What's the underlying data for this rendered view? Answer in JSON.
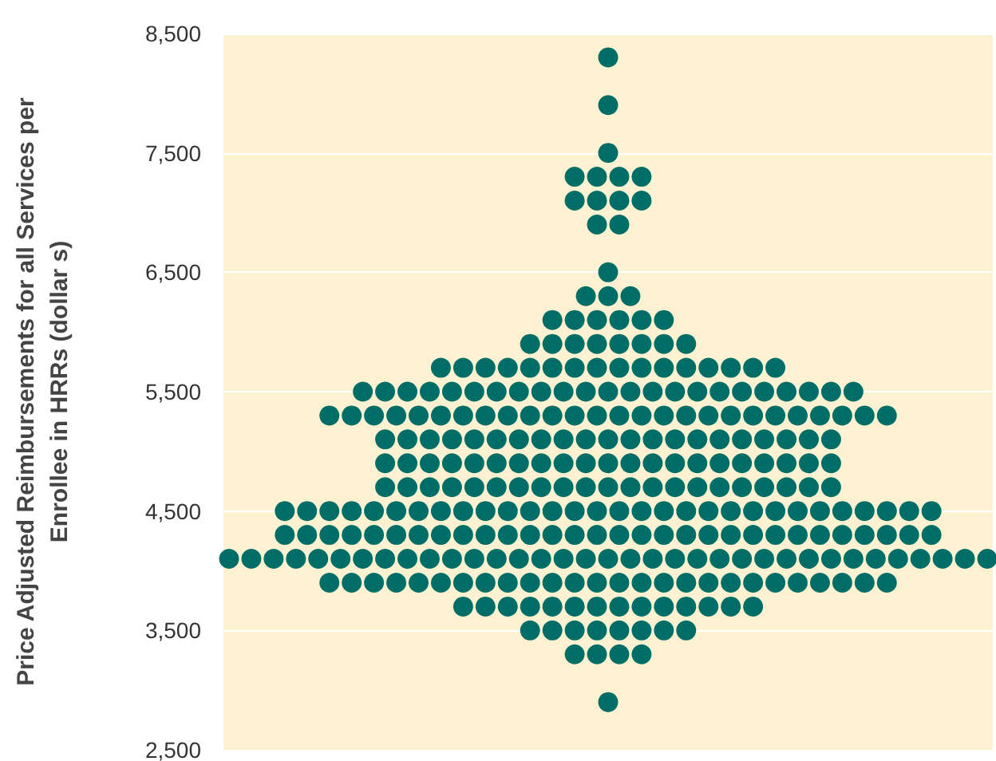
{
  "chart_data": {
    "type": "scatter",
    "ylabel": "Price Adjusted Reimbursements for all Services per Enrollee in HRRs (dollar s)",
    "categories": [
      null,
      null,
      null,
      null,
      null,
      null,
      null,
      null,
      null,
      null,
      null,
      null,
      null,
      null,
      null,
      null,
      null,
      null,
      null,
      null,
      null,
      null,
      null,
      null,
      null,
      null,
      null,
      null,
      null,
      null,
      null,
      null,
      null,
      null,
      null,
      null,
      null,
      null,
      null,
      null,
      null,
      null,
      null,
      null,
      null,
      null,
      null,
      null,
      null,
      null,
      null,
      null,
      null,
      null,
      null,
      null,
      null,
      null,
      null,
      null,
      null,
      null,
      null,
      null,
      null,
      null,
      null,
      null,
      null
    ],
    "ylim": [
      2500,
      8500
    ],
    "yticks": [
      {
        "value": 2500,
        "label": "2,500"
      },
      {
        "value": 3500,
        "label": "3,500"
      },
      {
        "value": 4500,
        "label": "4,500"
      },
      {
        "value": 5500,
        "label": "5,500"
      },
      {
        "value": 6500,
        "label": "6,500"
      },
      {
        "value": 7500,
        "label": "7,500"
      },
      {
        "value": 8500,
        "label": "8,500"
      }
    ],
    "tick_labels": "y",
    "grid": "y",
    "marker": "circle",
    "series": [
      {
        "color": "#006d66",
        "values": [
          null,
          null,
          null,
          null,
          null,
          null,
          null,
          null,
          null,
          null,
          null,
          null,
          null,
          null,
          null,
          null,
          null,
          null,
          null,
          null,
          null,
          null,
          null,
          null,
          null,
          null,
          null,
          null,
          null,
          null,
          null,
          null,
          null,
          null,
          8300,
          null,
          null,
          null,
          null,
          null,
          null,
          null,
          null,
          null,
          null,
          null,
          null,
          null,
          null,
          null,
          null,
          null,
          null,
          null,
          null,
          null,
          null,
          null,
          null,
          null,
          null,
          null,
          null,
          null,
          null,
          null,
          null,
          null,
          null
        ]
      },
      {
        "color": "#006d66",
        "values": [
          null,
          null,
          null,
          null,
          null,
          null,
          null,
          null,
          null,
          null,
          null,
          null,
          null,
          null,
          null,
          null,
          null,
          null,
          null,
          null,
          null,
          null,
          null,
          null,
          null,
          null,
          null,
          null,
          null,
          null,
          null,
          null,
          null,
          null,
          7900,
          null,
          null,
          null,
          null,
          null,
          null,
          null,
          null,
          null,
          null,
          null,
          null,
          null,
          null,
          null,
          null,
          null,
          null,
          null,
          null,
          null,
          null,
          null,
          null,
          null,
          null,
          null,
          null,
          null,
          null,
          null,
          null,
          null,
          null
        ]
      },
      {
        "color": "#006d66",
        "values": [
          null,
          null,
          null,
          null,
          null,
          null,
          null,
          null,
          null,
          null,
          null,
          null,
          null,
          null,
          null,
          null,
          null,
          null,
          null,
          null,
          null,
          null,
          null,
          null,
          null,
          null,
          null,
          null,
          null,
          null,
          null,
          null,
          null,
          null,
          7500,
          null,
          null,
          null,
          null,
          null,
          null,
          null,
          null,
          null,
          null,
          null,
          null,
          null,
          null,
          null,
          null,
          null,
          null,
          null,
          null,
          null,
          null,
          null,
          null,
          null,
          null,
          null,
          null,
          null,
          null,
          null,
          null,
          null,
          null
        ]
      },
      {
        "color": "#006d66",
        "values": [
          null,
          null,
          null,
          null,
          null,
          null,
          null,
          null,
          null,
          null,
          null,
          null,
          null,
          null,
          null,
          null,
          null,
          null,
          null,
          null,
          null,
          null,
          null,
          null,
          null,
          null,
          null,
          null,
          null,
          null,
          null,
          7300,
          null,
          7300,
          null,
          7300,
          null,
          7300,
          null,
          null,
          null,
          null,
          null,
          null,
          null,
          null,
          null,
          null,
          null,
          null,
          null,
          null,
          null,
          null,
          null,
          null,
          null,
          null,
          null,
          null,
          null,
          null,
          null,
          null,
          null,
          null,
          null,
          null,
          null
        ]
      },
      {
        "color": "#006d66",
        "values": [
          null,
          null,
          null,
          null,
          null,
          null,
          null,
          null,
          null,
          null,
          null,
          null,
          null,
          null,
          null,
          null,
          null,
          null,
          null,
          null,
          null,
          null,
          null,
          null,
          null,
          null,
          null,
          null,
          null,
          null,
          null,
          7100,
          null,
          7100,
          null,
          7100,
          null,
          7100,
          null,
          null,
          null,
          null,
          null,
          null,
          null,
          null,
          null,
          null,
          null,
          null,
          null,
          null,
          null,
          null,
          null,
          null,
          null,
          null,
          null,
          null,
          null,
          null,
          null,
          null,
          null,
          null,
          null,
          null,
          null
        ]
      },
      {
        "color": "#006d66",
        "values": [
          null,
          null,
          null,
          null,
          null,
          null,
          null,
          null,
          null,
          null,
          null,
          null,
          null,
          null,
          null,
          null,
          null,
          null,
          null,
          null,
          null,
          null,
          null,
          null,
          null,
          null,
          null,
          null,
          null,
          null,
          null,
          null,
          null,
          6900,
          null,
          6900,
          null,
          null,
          null,
          null,
          null,
          null,
          null,
          null,
          null,
          null,
          null,
          null,
          null,
          null,
          null,
          null,
          null,
          null,
          null,
          null,
          null,
          null,
          null,
          null,
          null,
          null,
          null,
          null,
          null,
          null,
          null,
          null,
          null
        ]
      },
      {
        "color": "#006d66",
        "values": [
          null,
          null,
          null,
          null,
          null,
          null,
          null,
          null,
          null,
          null,
          null,
          null,
          null,
          null,
          null,
          null,
          null,
          null,
          null,
          null,
          null,
          null,
          null,
          null,
          null,
          null,
          null,
          null,
          null,
          null,
          null,
          null,
          null,
          null,
          6500,
          null,
          null,
          null,
          null,
          null,
          null,
          null,
          null,
          null,
          null,
          null,
          null,
          null,
          null,
          null,
          null,
          null,
          null,
          null,
          null,
          null,
          null,
          null,
          null,
          null,
          null,
          null,
          null,
          null,
          null,
          null,
          null,
          null,
          null
        ]
      },
      {
        "color": "#006d66",
        "values": [
          null,
          null,
          null,
          null,
          null,
          null,
          null,
          null,
          null,
          null,
          null,
          null,
          null,
          null,
          null,
          null,
          null,
          null,
          null,
          null,
          null,
          null,
          null,
          null,
          null,
          null,
          null,
          null,
          null,
          null,
          null,
          null,
          6300,
          null,
          6300,
          null,
          6300,
          null,
          null,
          null,
          null,
          null,
          null,
          null,
          null,
          null,
          null,
          null,
          null,
          null,
          null,
          null,
          null,
          null,
          null,
          null,
          null,
          null,
          null,
          null,
          null,
          null,
          null,
          null,
          null,
          null,
          null,
          null,
          null
        ]
      },
      {
        "color": "#006d66",
        "values": [
          null,
          null,
          null,
          null,
          null,
          null,
          null,
          null,
          null,
          null,
          null,
          null,
          null,
          null,
          null,
          null,
          null,
          null,
          null,
          null,
          null,
          null,
          null,
          null,
          null,
          null,
          null,
          null,
          null,
          6100,
          null,
          6100,
          null,
          6100,
          null,
          6100,
          null,
          6100,
          null,
          6100,
          null,
          null,
          null,
          null,
          null,
          null,
          null,
          null,
          null,
          null,
          null,
          null,
          null,
          null,
          null,
          null,
          null,
          null,
          null,
          null,
          null,
          null,
          null,
          null,
          null,
          null,
          null,
          null,
          null
        ]
      },
      {
        "color": "#006d66",
        "values": [
          null,
          null,
          null,
          null,
          null,
          null,
          null,
          null,
          null,
          null,
          null,
          null,
          null,
          null,
          null,
          null,
          null,
          null,
          null,
          null,
          null,
          null,
          null,
          null,
          null,
          null,
          null,
          5900,
          null,
          5900,
          null,
          5900,
          null,
          5900,
          null,
          5900,
          null,
          5900,
          null,
          5900,
          null,
          5900,
          null,
          null,
          null,
          null,
          null,
          null,
          null,
          null,
          null,
          null,
          null,
          null,
          null,
          null,
          null,
          null,
          null,
          null,
          null,
          null,
          null,
          null,
          null,
          null,
          null,
          null,
          null
        ]
      },
      {
        "color": "#006d66",
        "values": [
          null,
          null,
          null,
          null,
          null,
          null,
          null,
          null,
          null,
          null,
          null,
          null,
          null,
          null,
          null,
          null,
          null,
          null,
          null,
          5700,
          null,
          5700,
          null,
          5700,
          null,
          5700,
          null,
          5700,
          null,
          5700,
          null,
          5700,
          null,
          5700,
          null,
          5700,
          null,
          5700,
          null,
          5700,
          null,
          5700,
          null,
          5700,
          null,
          5700,
          null,
          5700,
          null,
          5700,
          null,
          null,
          null,
          null,
          null,
          null,
          null,
          null,
          null,
          null,
          null,
          null,
          null,
          null,
          null,
          null,
          null,
          null,
          null
        ]
      },
      {
        "color": "#006d66",
        "values": [
          null,
          null,
          null,
          null,
          null,
          null,
          null,
          null,
          null,
          null,
          null,
          null,
          5500,
          null,
          5500,
          null,
          5500,
          null,
          5500,
          null,
          5500,
          null,
          5500,
          null,
          5500,
          null,
          5500,
          null,
          5500,
          null,
          5500,
          null,
          5500,
          null,
          5500,
          null,
          5500,
          null,
          5500,
          null,
          5500,
          null,
          5500,
          null,
          5500,
          null,
          5500,
          null,
          5500,
          null,
          5500,
          null,
          5500,
          null,
          5500,
          null,
          5500,
          null,
          null,
          null,
          null,
          null,
          null,
          null,
          null,
          null,
          null,
          null,
          null
        ]
      },
      {
        "color": "#006d66",
        "values": [
          null,
          null,
          null,
          null,
          null,
          null,
          null,
          null,
          null,
          5300,
          null,
          5300,
          null,
          5300,
          null,
          5300,
          null,
          5300,
          null,
          5300,
          null,
          5300,
          null,
          5300,
          null,
          5300,
          null,
          5300,
          null,
          5300,
          null,
          5300,
          null,
          5300,
          null,
          5300,
          null,
          5300,
          null,
          5300,
          null,
          5300,
          null,
          5300,
          null,
          5300,
          null,
          5300,
          null,
          5300,
          null,
          5300,
          null,
          5300,
          null,
          5300,
          null,
          5300,
          null,
          5300,
          null,
          null,
          null,
          null,
          null,
          null,
          null,
          null,
          null
        ]
      },
      {
        "color": "#006d66",
        "values": [
          null,
          null,
          null,
          null,
          null,
          null,
          null,
          null,
          null,
          null,
          null,
          null,
          null,
          null,
          5100,
          null,
          5100,
          null,
          5100,
          null,
          5100,
          null,
          5100,
          null,
          5100,
          null,
          5100,
          null,
          5100,
          null,
          5100,
          null,
          5100,
          null,
          5100,
          null,
          5100,
          null,
          5100,
          null,
          5100,
          null,
          5100,
          null,
          5100,
          null,
          5100,
          null,
          5100,
          null,
          5100,
          null,
          5100,
          null,
          5100,
          null,
          null,
          null,
          null,
          null,
          null,
          null,
          null,
          null,
          null,
          null,
          null,
          null,
          null
        ]
      },
      {
        "color": "#006d66",
        "values": [
          null,
          null,
          null,
          null,
          null,
          null,
          null,
          null,
          null,
          null,
          null,
          null,
          null,
          null,
          4900,
          null,
          4900,
          null,
          4900,
          null,
          4900,
          null,
          4900,
          null,
          4900,
          null,
          4900,
          null,
          4900,
          null,
          4900,
          null,
          4900,
          null,
          4900,
          null,
          4900,
          null,
          4900,
          null,
          4900,
          null,
          4900,
          null,
          4900,
          null,
          4900,
          null,
          4900,
          null,
          4900,
          null,
          4900,
          null,
          4900,
          null,
          null,
          null,
          null,
          null,
          null,
          null,
          null,
          null,
          null,
          null,
          null,
          null,
          null
        ]
      },
      {
        "color": "#006d66",
        "values": [
          null,
          null,
          null,
          null,
          null,
          null,
          null,
          null,
          null,
          null,
          null,
          null,
          null,
          null,
          4700,
          null,
          4700,
          null,
          4700,
          null,
          4700,
          null,
          4700,
          null,
          4700,
          null,
          4700,
          null,
          4700,
          null,
          4700,
          null,
          4700,
          null,
          4700,
          null,
          4700,
          null,
          4700,
          null,
          4700,
          null,
          4700,
          null,
          4700,
          null,
          4700,
          null,
          4700,
          null,
          4700,
          null,
          4700,
          null,
          4700,
          null,
          null,
          null,
          null,
          null,
          null,
          null,
          null,
          null,
          null,
          null,
          null,
          null,
          null
        ]
      },
      {
        "color": "#006d66",
        "values": [
          null,
          null,
          null,
          null,
          null,
          4500,
          null,
          4500,
          null,
          4500,
          null,
          4500,
          null,
          4500,
          null,
          4500,
          null,
          4500,
          null,
          4500,
          null,
          4500,
          null,
          4500,
          null,
          4500,
          null,
          4500,
          null,
          4500,
          null,
          4500,
          null,
          4500,
          null,
          4500,
          null,
          4500,
          null,
          4500,
          null,
          4500,
          null,
          4500,
          null,
          4500,
          null,
          4500,
          null,
          4500,
          null,
          4500,
          null,
          4500,
          null,
          4500,
          null,
          4500,
          null,
          4500,
          null,
          4500,
          null,
          4500,
          null,
          null,
          null,
          null,
          null
        ]
      },
      {
        "color": "#006d66",
        "values": [
          null,
          null,
          null,
          null,
          null,
          4300,
          null,
          4300,
          null,
          4300,
          null,
          4300,
          null,
          4300,
          null,
          4300,
          null,
          4300,
          null,
          4300,
          null,
          4300,
          null,
          4300,
          null,
          4300,
          null,
          4300,
          null,
          4300,
          null,
          4300,
          null,
          4300,
          null,
          4300,
          null,
          4300,
          null,
          4300,
          null,
          4300,
          null,
          4300,
          null,
          4300,
          null,
          4300,
          null,
          4300,
          null,
          4300,
          null,
          4300,
          null,
          4300,
          null,
          4300,
          null,
          4300,
          null,
          4300,
          null,
          4300,
          null,
          null,
          null,
          null,
          null
        ]
      },
      {
        "color": "#006d66",
        "values": [
          4100,
          null,
          4100,
          null,
          4100,
          null,
          4100,
          null,
          4100,
          null,
          4100,
          null,
          4100,
          null,
          4100,
          null,
          4100,
          null,
          4100,
          null,
          4100,
          null,
          4100,
          null,
          4100,
          null,
          4100,
          null,
          4100,
          null,
          4100,
          null,
          4100,
          null,
          4100,
          null,
          4100,
          null,
          4100,
          null,
          4100,
          null,
          4100,
          null,
          4100,
          null,
          4100,
          null,
          4100,
          null,
          4100,
          null,
          4100,
          null,
          4100,
          null,
          4100,
          null,
          4100,
          null,
          4100,
          null,
          4100,
          null,
          4100,
          null,
          4100,
          null,
          4100
        ]
      },
      {
        "color": "#006d66",
        "values": [
          null,
          null,
          null,
          null,
          null,
          null,
          null,
          null,
          null,
          3900,
          null,
          3900,
          null,
          3900,
          null,
          3900,
          null,
          3900,
          null,
          3900,
          null,
          3900,
          null,
          3900,
          null,
          3900,
          null,
          3900,
          null,
          3900,
          null,
          3900,
          null,
          3900,
          null,
          3900,
          null,
          3900,
          null,
          3900,
          null,
          3900,
          null,
          3900,
          null,
          3900,
          null,
          3900,
          null,
          3900,
          null,
          3900,
          null,
          3900,
          null,
          3900,
          null,
          3900,
          null,
          3900,
          null,
          null,
          null,
          null,
          null,
          null,
          null,
          null,
          null
        ]
      },
      {
        "color": "#006d66",
        "values": [
          null,
          null,
          null,
          null,
          null,
          null,
          null,
          null,
          null,
          null,
          null,
          null,
          null,
          null,
          null,
          null,
          null,
          null,
          null,
          null,
          null,
          3700,
          null,
          3700,
          null,
          3700,
          null,
          3700,
          null,
          3700,
          null,
          3700,
          null,
          3700,
          null,
          3700,
          null,
          3700,
          null,
          3700,
          null,
          3700,
          null,
          3700,
          null,
          3700,
          null,
          3700,
          null,
          null,
          null,
          null,
          null,
          null,
          null,
          null,
          null,
          null,
          null,
          null,
          null,
          null,
          null,
          null,
          null,
          null,
          null,
          null,
          null
        ]
      },
      {
        "color": "#006d66",
        "values": [
          null,
          null,
          null,
          null,
          null,
          null,
          null,
          null,
          null,
          null,
          null,
          null,
          null,
          null,
          null,
          null,
          null,
          null,
          null,
          null,
          null,
          null,
          null,
          null,
          null,
          null,
          null,
          3500,
          null,
          3500,
          null,
          3500,
          null,
          3500,
          null,
          3500,
          null,
          3500,
          null,
          3500,
          null,
          3500,
          null,
          null,
          null,
          null,
          null,
          null,
          null,
          null,
          null,
          null,
          null,
          null,
          null,
          null,
          null,
          null,
          null,
          null,
          null,
          null,
          null,
          null,
          null,
          null,
          null,
          null,
          null
        ]
      },
      {
        "color": "#006d66",
        "values": [
          null,
          null,
          null,
          null,
          null,
          null,
          null,
          null,
          null,
          null,
          null,
          null,
          null,
          null,
          null,
          null,
          null,
          null,
          null,
          null,
          null,
          null,
          null,
          null,
          null,
          null,
          null,
          null,
          null,
          null,
          null,
          3300,
          null,
          3300,
          null,
          3300,
          null,
          3300,
          null,
          null,
          null,
          null,
          null,
          null,
          null,
          null,
          null,
          null,
          null,
          null,
          null,
          null,
          null,
          null,
          null,
          null,
          null,
          null,
          null,
          null,
          null,
          null,
          null,
          null,
          null,
          null,
          null,
          null,
          null
        ]
      },
      {
        "color": "#006d66",
        "values": [
          null,
          null,
          null,
          null,
          null,
          null,
          null,
          null,
          null,
          null,
          null,
          null,
          null,
          null,
          null,
          null,
          null,
          null,
          null,
          null,
          null,
          null,
          null,
          null,
          null,
          null,
          null,
          null,
          null,
          null,
          null,
          null,
          null,
          null,
          2900,
          null,
          null,
          null,
          null,
          null,
          null,
          null,
          null,
          null,
          null,
          null,
          null,
          null,
          null,
          null,
          null,
          null,
          null,
          null,
          null,
          null,
          null,
          null,
          null,
          null,
          null,
          null,
          null,
          null,
          null,
          null,
          null,
          null,
          null
        ]
      }
    ]
  }
}
